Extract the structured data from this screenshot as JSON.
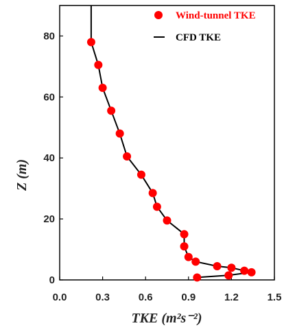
{
  "chart_data": {
    "type": "scatter",
    "xlabel": "TKE  (m²s⁻²)",
    "ylabel": "Z  (m)",
    "xlim": [
      0.0,
      1.5
    ],
    "ylim": [
      0,
      90
    ],
    "x_ticks": [
      "0.0",
      "0.3",
      "0.6",
      "0.9",
      "1.2",
      "1.5"
    ],
    "x_tick_values": [
      0.0,
      0.3,
      0.6,
      0.9,
      1.2,
      1.5
    ],
    "y_ticks": [
      "0",
      "20",
      "40",
      "60",
      "80"
    ],
    "y_tick_values": [
      0,
      20,
      40,
      60,
      80
    ],
    "grid": false,
    "legend_position": "top-right",
    "series": [
      {
        "name": "Wind-tunnel TKE",
        "kind": "scatter",
        "color": "#ff0000",
        "points": [
          {
            "x": 0.22,
            "y": 78
          },
          {
            "x": 0.27,
            "y": 70.5
          },
          {
            "x": 0.3,
            "y": 63
          },
          {
            "x": 0.36,
            "y": 55.5
          },
          {
            "x": 0.42,
            "y": 48
          },
          {
            "x": 0.47,
            "y": 40.5
          },
          {
            "x": 0.57,
            "y": 34.5
          },
          {
            "x": 0.65,
            "y": 28.5
          },
          {
            "x": 0.68,
            "y": 24
          },
          {
            "x": 0.75,
            "y": 19.5
          },
          {
            "x": 0.87,
            "y": 15
          },
          {
            "x": 0.87,
            "y": 11
          },
          {
            "x": 0.9,
            "y": 7.5
          },
          {
            "x": 0.95,
            "y": 6
          },
          {
            "x": 1.1,
            "y": 4.5
          },
          {
            "x": 1.2,
            "y": 4
          },
          {
            "x": 1.29,
            "y": 3
          },
          {
            "x": 1.34,
            "y": 2.5
          },
          {
            "x": 1.18,
            "y": 1.5
          },
          {
            "x": 0.96,
            "y": 0.8
          }
        ]
      },
      {
        "name": "CFD TKE",
        "kind": "line",
        "color": "#000000",
        "points": [
          {
            "x": 0.22,
            "y": 90
          },
          {
            "x": 0.22,
            "y": 78
          },
          {
            "x": 0.27,
            "y": 70.5
          },
          {
            "x": 0.3,
            "y": 63
          },
          {
            "x": 0.36,
            "y": 55.5
          },
          {
            "x": 0.42,
            "y": 48
          },
          {
            "x": 0.47,
            "y": 40.5
          },
          {
            "x": 0.57,
            "y": 34.5
          },
          {
            "x": 0.65,
            "y": 28.5
          },
          {
            "x": 0.68,
            "y": 24
          },
          {
            "x": 0.75,
            "y": 19.5
          },
          {
            "x": 0.87,
            "y": 15
          },
          {
            "x": 0.87,
            "y": 11
          },
          {
            "x": 0.9,
            "y": 7.5
          },
          {
            "x": 0.95,
            "y": 6
          },
          {
            "x": 1.1,
            "y": 4.5
          },
          {
            "x": 1.2,
            "y": 4
          },
          {
            "x": 1.29,
            "y": 3
          },
          {
            "x": 1.34,
            "y": 2.5
          },
          {
            "x": 1.18,
            "y": 1.5
          },
          {
            "x": 0.96,
            "y": 0.8
          }
        ]
      }
    ]
  }
}
